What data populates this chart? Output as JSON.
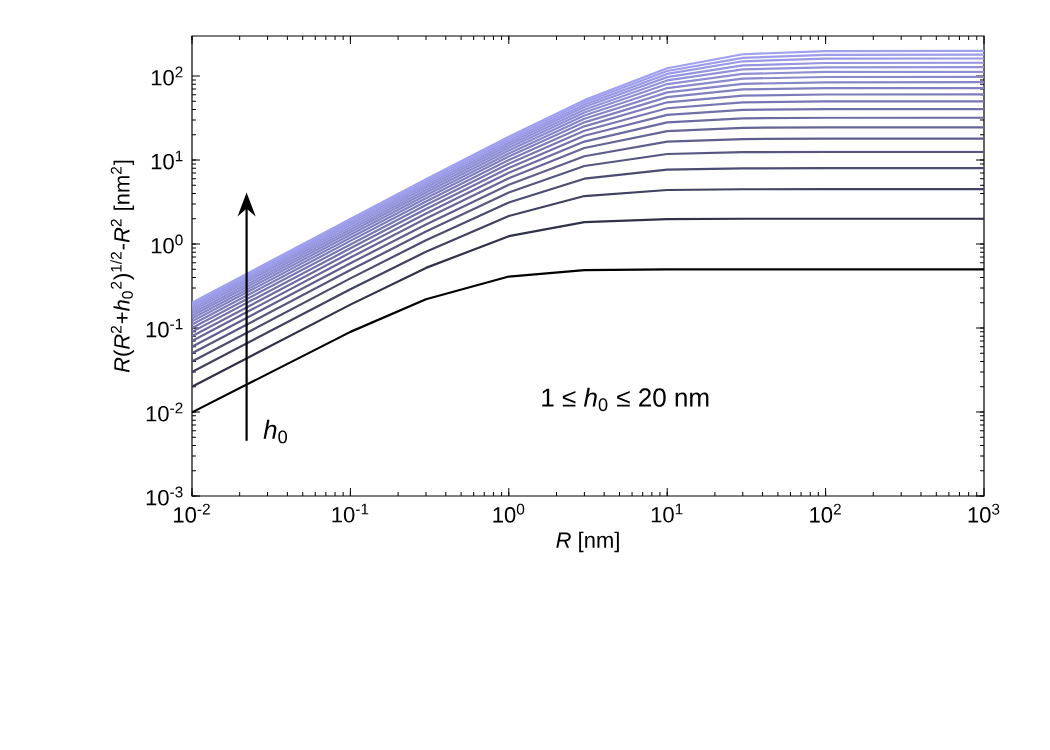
{
  "chart_data": {
    "type": "line",
    "xlabel": "*R* [nm]",
    "ylabel": "*R*(*R*$^{2}$+*h*$_{0}$$^{2}$)$^{1/2}$-*R*$^{2}$ [nm$^{2}$]",
    "annotations": [
      "*h*$_{0}$",
      "1 ≤ *h*$_{0}$ ≤ 20 nm"
    ],
    "log": "xy",
    "xlim": [
      0.01,
      1000
    ],
    "ylim": [
      0.001,
      300
    ],
    "xticks": [
      {
        "value": 0.01,
        "label": "10$^{-2}$"
      },
      {
        "value": 0.1,
        "label": "10$^{-1}$"
      },
      {
        "value": 1,
        "label": "10$^{0}$"
      },
      {
        "value": 10,
        "label": "10$^{1}$"
      },
      {
        "value": 100,
        "label": "10$^{2}$"
      },
      {
        "value": 1000,
        "label": "10$^{3}$"
      }
    ],
    "yticks": [
      {
        "value": 0.001,
        "label": "10$^{-3}$"
      },
      {
        "value": 0.01,
        "label": "10$^{-2}$"
      },
      {
        "value": 0.1,
        "label": "10$^{-1}$"
      },
      {
        "value": 1,
        "label": "10$^{0}$"
      },
      {
        "value": 10,
        "label": "10$^{1}$"
      },
      {
        "value": 100,
        "label": "10$^{2}$"
      }
    ],
    "x": [
      0.01,
      0.1,
      0.3,
      1,
      3,
      10,
      30,
      100,
      1000
    ],
    "series": [
      {
        "color": "#000000",
        "values": [
          0.0099,
          0.09,
          0.22,
          0.41,
          0.49,
          0.5,
          0.5,
          0.5,
          0.5
        ]
      },
      {
        "color": "#31314a",
        "values": [
          0.02,
          0.19,
          0.52,
          1.24,
          1.82,
          1.98,
          2.0,
          2.0,
          2.0
        ]
      },
      {
        "color": "#414162",
        "values": [
          0.03,
          0.29,
          0.81,
          2.16,
          3.73,
          4.4,
          4.49,
          4.5,
          4.5
        ]
      },
      {
        "color": "#4c4c73",
        "values": [
          0.04,
          0.39,
          1.11,
          3.12,
          6.0,
          7.7,
          7.95,
          8.0,
          8.0
        ]
      },
      {
        "color": "#565681",
        "values": [
          0.05,
          0.49,
          1.41,
          4.1,
          8.49,
          11.8,
          12.4,
          12.5,
          12.5
        ]
      },
      {
        "color": "#5e5e8d",
        "values": [
          0.06,
          0.59,
          1.71,
          5.08,
          11.1,
          16.6,
          17.8,
          18.0,
          18.0
        ]
      },
      {
        "color": "#656597",
        "values": [
          0.07,
          0.69,
          2.01,
          6.07,
          13.9,
          22.1,
          24.2,
          24.5,
          24.5
        ]
      },
      {
        "color": "#6b6ba1",
        "values": [
          0.08,
          0.79,
          2.31,
          7.06,
          16.6,
          28.1,
          31.4,
          31.9,
          32.0
        ]
      },
      {
        "color": "#7171aa",
        "values": [
          0.09,
          0.89,
          2.61,
          8.06,
          19.5,
          34.5,
          39.6,
          40.4,
          40.5
        ]
      },
      {
        "color": "#7777b2",
        "values": [
          0.1,
          0.99,
          2.91,
          9.05,
          22.3,
          41.4,
          48.7,
          49.9,
          50.0
        ]
      },
      {
        "color": "#7c7cba",
        "values": [
          0.11,
          1.09,
          3.21,
          10.0,
          25.2,
          48.7,
          58.6,
          60.3,
          60.5
        ]
      },
      {
        "color": "#8181c1",
        "values": [
          0.12,
          1.19,
          3.51,
          11.0,
          28.1,
          56.2,
          69.3,
          71.7,
          72.0
        ]
      },
      {
        "color": "#8585c8",
        "values": [
          0.13,
          1.29,
          3.81,
          12.0,
          31.0,
          64.0,
          80.9,
          84.1,
          84.5
        ]
      },
      {
        "color": "#8989ce",
        "values": [
          0.14,
          1.39,
          4.11,
          13.0,
          34.0,
          72.0,
          93.2,
          97.5,
          98.0
        ]
      },
      {
        "color": "#8e8ed4",
        "values": [
          0.15,
          1.49,
          4.41,
          14.0,
          36.9,
          80.3,
          106,
          112,
          112
        ]
      },
      {
        "color": "#9292da",
        "values": [
          0.16,
          1.59,
          4.71,
          15.0,
          39.8,
          88.7,
          120,
          127,
          128
        ]
      },
      {
        "color": "#9595e0",
        "values": [
          0.17,
          1.69,
          5.01,
          16.0,
          42.8,
          97.2,
          134,
          143,
          144
        ]
      },
      {
        "color": "#9999e5",
        "values": [
          0.18,
          1.79,
          5.31,
          17.0,
          45.7,
          106,
          150,
          161,
          162
        ]
      },
      {
        "color": "#9d9deb",
        "values": [
          0.19,
          1.89,
          5.61,
          18.0,
          48.7,
          115,
          165,
          179,
          180
        ]
      },
      {
        "color": "#a0a0f0",
        "values": [
          0.2,
          1.99,
          5.91,
          19.0,
          51.7,
          124,
          182,
          198,
          200
        ]
      }
    ]
  }
}
